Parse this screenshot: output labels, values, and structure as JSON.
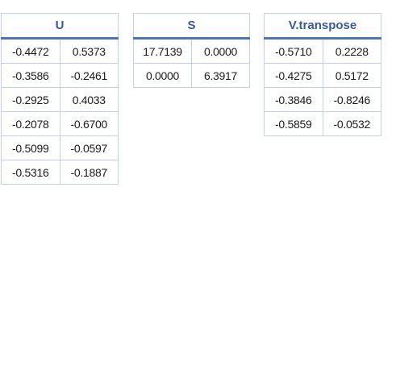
{
  "matrices": [
    {
      "title": "U",
      "rows": [
        [
          "-0.4472",
          "0.5373"
        ],
        [
          "-0.3586",
          "-0.2461"
        ],
        [
          "-0.2925",
          "0.4033"
        ],
        [
          "-0.2078",
          "-0.6700"
        ],
        [
          "-0.5099",
          "-0.0597"
        ],
        [
          "-0.5316",
          "-0.1887"
        ]
      ]
    },
    {
      "title": "S",
      "rows": [
        [
          "17.7139",
          "0.0000"
        ],
        [
          "0.0000",
          "6.3917"
        ]
      ]
    },
    {
      "title": "V.transpose",
      "rows": [
        [
          "-0.5710",
          "0.2228"
        ],
        [
          "-0.4275",
          "0.5172"
        ],
        [
          "-0.3846",
          "-0.8246"
        ],
        [
          "-0.5859",
          "-0.0532"
        ]
      ]
    }
  ]
}
